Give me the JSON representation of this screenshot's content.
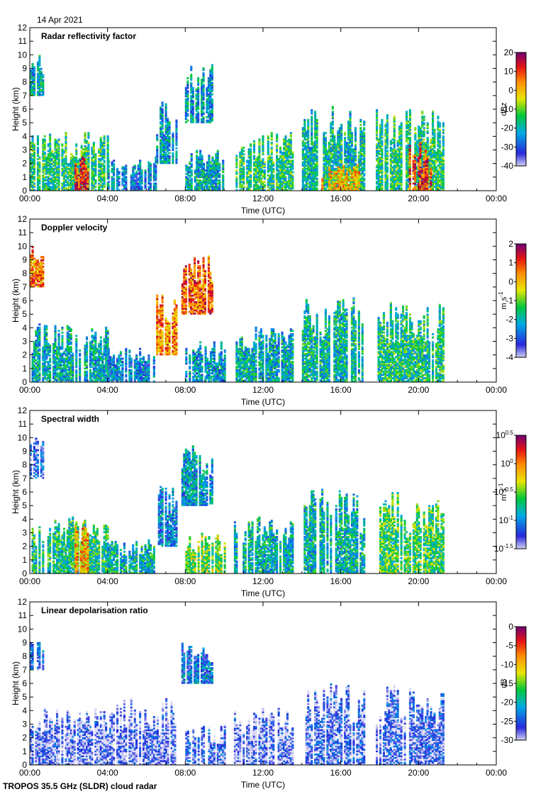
{
  "header": {
    "date": "14 Apr 2021"
  },
  "footer": {
    "instrument": "TROPOS 35.5 GHz (SLDR) cloud radar"
  },
  "chart_data": [
    {
      "type": "heatmap",
      "title": "Radar reflectivity factor",
      "xlabel": "Time (UTC)",
      "ylabel": "Height (km)",
      "x_ticks": [
        "00:00",
        "04:00",
        "08:00",
        "12:00",
        "16:00",
        "20:00",
        "00:00"
      ],
      "xlim_hours": [
        0,
        24
      ],
      "ylim": [
        0,
        12
      ],
      "colorbar": {
        "label": "dBz",
        "ticks": [
          "20",
          "10",
          "0",
          "-10",
          "-20",
          "-30",
          "-40"
        ],
        "range": [
          -40,
          20
        ]
      },
      "palette": "rainbow",
      "regions": [
        {
          "t": [
            0.0,
            0.7
          ],
          "h": [
            7.0,
            10.0
          ],
          "v": -20
        },
        {
          "t": [
            0.0,
            4.0
          ],
          "h": [
            0.0,
            4.3
          ],
          "v": -15
        },
        {
          "t": [
            2.3,
            3.0
          ],
          "h": [
            0.0,
            2.5
          ],
          "v": 10
        },
        {
          "t": [
            4.0,
            6.5
          ],
          "h": [
            0.0,
            2.5
          ],
          "v": -25
        },
        {
          "t": [
            6.5,
            7.5
          ],
          "h": [
            2.0,
            6.5
          ],
          "v": -22
        },
        {
          "t": [
            7.8,
            9.4
          ],
          "h": [
            5.0,
            9.5
          ],
          "v": -22
        },
        {
          "t": [
            8.0,
            10.0
          ],
          "h": [
            0.0,
            3.0
          ],
          "v": -20
        },
        {
          "t": [
            10.5,
            13.5
          ],
          "h": [
            0.0,
            4.3
          ],
          "v": -15
        },
        {
          "t": [
            14.0,
            17.2
          ],
          "h": [
            0.0,
            6.2
          ],
          "v": -18
        },
        {
          "t": [
            15.0,
            17.0
          ],
          "h": [
            0.0,
            2.0
          ],
          "v": 0
        },
        {
          "t": [
            17.8,
            21.3
          ],
          "h": [
            0.0,
            6.0
          ],
          "v": -15
        },
        {
          "t": [
            19.5,
            20.6
          ],
          "h": [
            0.0,
            3.5
          ],
          "v": 10
        }
      ]
    },
    {
      "type": "heatmap",
      "title": "Doppler velocity",
      "xlabel": "Time (UTC)",
      "ylabel": "Height (km)",
      "x_ticks": [
        "00:00",
        "04:00",
        "08:00",
        "12:00",
        "16:00",
        "20:00",
        "00:00"
      ],
      "xlim_hours": [
        0,
        24
      ],
      "ylim": [
        0,
        12
      ],
      "colorbar": {
        "label": "m s-1",
        "ticks": [
          "2",
          "1",
          "0",
          "-1",
          "-2",
          "-3",
          "-4"
        ],
        "range": [
          -4,
          2
        ]
      },
      "palette": "rainbow",
      "regions": [
        {
          "t": [
            0.0,
            0.7
          ],
          "h": [
            7.0,
            10.0
          ],
          "v": 0.5
        },
        {
          "t": [
            0.0,
            4.0
          ],
          "h": [
            0.0,
            4.3
          ],
          "v": -2.0
        },
        {
          "t": [
            4.0,
            6.5
          ],
          "h": [
            0.0,
            2.5
          ],
          "v": -2.5
        },
        {
          "t": [
            6.5,
            7.5
          ],
          "h": [
            2.0,
            6.5
          ],
          "v": 0.5
        },
        {
          "t": [
            7.8,
            9.4
          ],
          "h": [
            5.0,
            9.5
          ],
          "v": 0.8
        },
        {
          "t": [
            8.0,
            10.0
          ],
          "h": [
            0.0,
            3.0
          ],
          "v": -2.2
        },
        {
          "t": [
            10.5,
            13.5
          ],
          "h": [
            0.0,
            4.3
          ],
          "v": -2.0
        },
        {
          "t": [
            14.0,
            17.2
          ],
          "h": [
            0.0,
            6.2
          ],
          "v": -1.8
        },
        {
          "t": [
            17.8,
            21.3
          ],
          "h": [
            0.0,
            6.0
          ],
          "v": -1.6
        }
      ]
    },
    {
      "type": "heatmap",
      "title": "Spectral width",
      "xlabel": "Time (UTC)",
      "ylabel": "Height (km)",
      "x_ticks": [
        "00:00",
        "04:00",
        "08:00",
        "12:00",
        "16:00",
        "20:00",
        "00:00"
      ],
      "xlim_hours": [
        0,
        24
      ],
      "ylim": [
        0,
        12
      ],
      "colorbar": {
        "label": "m s-1",
        "ticks": [
          "10^0.5",
          "10^0",
          "10^-0.5",
          "10^-1",
          "10^-1.5"
        ],
        "range": [
          -1.5,
          0.5
        ]
      },
      "palette": "rainbow",
      "regions": [
        {
          "t": [
            0.0,
            0.7
          ],
          "h": [
            7.0,
            10.0
          ],
          "v": -1.2
        },
        {
          "t": [
            0.0,
            4.0
          ],
          "h": [
            0.0,
            4.3
          ],
          "v": -0.7
        },
        {
          "t": [
            2.3,
            3.0
          ],
          "h": [
            0.0,
            4.3
          ],
          "v": -0.1
        },
        {
          "t": [
            4.0,
            6.5
          ],
          "h": [
            0.0,
            2.5
          ],
          "v": -0.8
        },
        {
          "t": [
            6.5,
            7.5
          ],
          "h": [
            2.0,
            6.5
          ],
          "v": -1.0
        },
        {
          "t": [
            7.8,
            9.4
          ],
          "h": [
            5.0,
            9.5
          ],
          "v": -0.9
        },
        {
          "t": [
            8.0,
            10.0
          ],
          "h": [
            0.0,
            3.0
          ],
          "v": -0.5
        },
        {
          "t": [
            10.5,
            13.5
          ],
          "h": [
            0.0,
            4.3
          ],
          "v": -0.8
        },
        {
          "t": [
            14.0,
            17.2
          ],
          "h": [
            0.0,
            6.2
          ],
          "v": -0.8
        },
        {
          "t": [
            17.8,
            21.3
          ],
          "h": [
            0.0,
            6.0
          ],
          "v": -0.6
        }
      ]
    },
    {
      "type": "heatmap",
      "title": "Linear depolarisation ratio",
      "xlabel": "Time (UTC)",
      "ylabel": "Height (km)",
      "x_ticks": [
        "00:00",
        "04:00",
        "08:00",
        "12:00",
        "16:00",
        "20:00",
        "00:00"
      ],
      "xlim_hours": [
        0,
        24
      ],
      "ylim": [
        0,
        12
      ],
      "colorbar": {
        "label": "dB",
        "ticks": [
          "0",
          "-5",
          "-10",
          "-15",
          "-20",
          "-25",
          "-30"
        ],
        "range": [
          -30,
          0
        ]
      },
      "palette": "rainbow",
      "regions": [
        {
          "t": [
            0.0,
            0.7
          ],
          "h": [
            7.0,
            9.8
          ],
          "v": -24
        },
        {
          "t": [
            0.0,
            4.0
          ],
          "h": [
            0.0,
            4.3
          ],
          "v": -28
        },
        {
          "t": [
            4.0,
            7.5
          ],
          "h": [
            0.0,
            5.0
          ],
          "v": -28
        },
        {
          "t": [
            7.8,
            9.4
          ],
          "h": [
            6.0,
            9.0
          ],
          "v": -23
        },
        {
          "t": [
            8.0,
            10.0
          ],
          "h": [
            0.0,
            3.0
          ],
          "v": -27
        },
        {
          "t": [
            10.5,
            13.5
          ],
          "h": [
            0.0,
            4.3
          ],
          "v": -28
        },
        {
          "t": [
            14.0,
            17.2
          ],
          "h": [
            0.0,
            6.0
          ],
          "v": -27
        },
        {
          "t": [
            17.8,
            21.3
          ],
          "h": [
            0.0,
            6.0
          ],
          "v": -27
        }
      ]
    }
  ]
}
